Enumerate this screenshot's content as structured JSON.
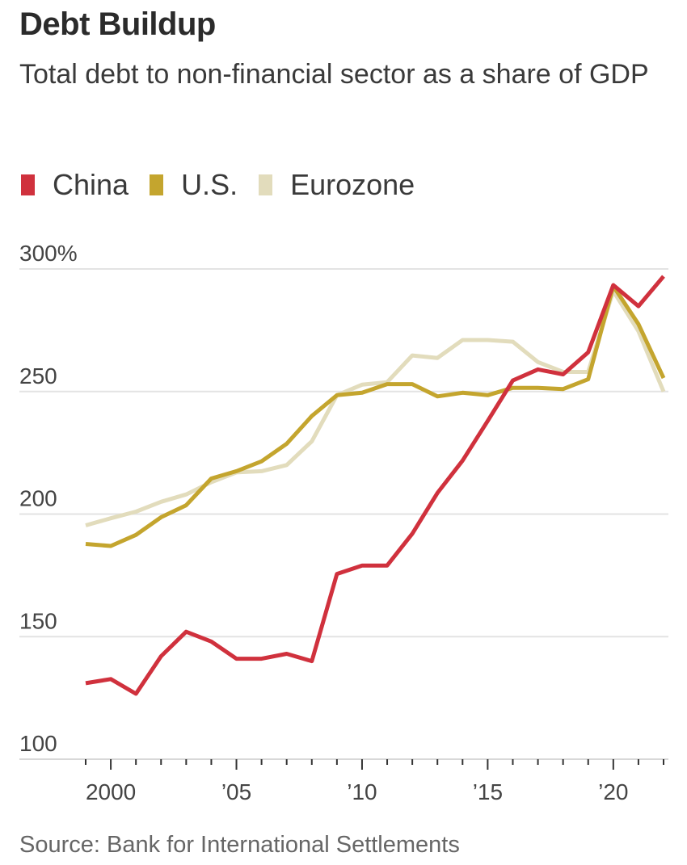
{
  "title": "Debt Buildup",
  "subtitle": "Total debt to non-financial sector as a share of GDP",
  "source": "Source: Bank for International Settlements",
  "legend": [
    {
      "name": "China",
      "color": "#d0313d"
    },
    {
      "name": "U.S.",
      "color": "#c4a52e"
    },
    {
      "name": "Eurozone",
      "color": "#e2dcbc"
    }
  ],
  "chart_data": {
    "type": "line",
    "title": "Debt Buildup",
    "subtitle": "Total debt to non-financial sector as a share of GDP",
    "xlabel": "",
    "ylabel": "",
    "x": [
      1999,
      2000,
      2001,
      2002,
      2003,
      2004,
      2005,
      2006,
      2007,
      2008,
      2009,
      2010,
      2011,
      2012,
      2013,
      2014,
      2015,
      2016,
      2017,
      2018,
      2019,
      2020,
      2021,
      2022
    ],
    "xlim": [
      1999,
      2022
    ],
    "ylim": [
      100,
      300
    ],
    "yticks": [
      100,
      150,
      200,
      250,
      300
    ],
    "ytick_labels": [
      "100",
      "150",
      "200",
      "250",
      "300%"
    ],
    "xticks": [
      2000,
      2005,
      2010,
      2015,
      2020
    ],
    "xtick_labels": [
      "2000",
      "’05",
      "’10",
      "’15",
      "’20"
    ],
    "grid": "horizontal",
    "legend_position": "top-left",
    "series": [
      {
        "name": "Eurozone",
        "color": "#e2dcbc",
        "values": [
          195.4,
          198.3,
          201,
          205,
          208,
          213,
          217,
          217.5,
          220,
          229.7,
          248.5,
          252.8,
          253.8,
          264.7,
          263.7,
          271,
          271,
          270.3,
          262,
          258,
          258,
          291,
          274.6,
          250
        ]
      },
      {
        "name": "U.S.",
        "color": "#c4a52e",
        "values": [
          187.8,
          187,
          191.5,
          198.7,
          203.6,
          214.5,
          217.5,
          221.5,
          228.7,
          240,
          248.5,
          249.5,
          253,
          253,
          248,
          249.5,
          248.5,
          251.5,
          251.5,
          251,
          255,
          293,
          277.5,
          255.5
        ]
      },
      {
        "name": "China",
        "color": "#d0313d",
        "values": [
          131,
          132.7,
          126.7,
          142,
          152,
          148,
          141,
          141,
          143,
          140,
          175.6,
          179,
          179,
          192,
          208.6,
          221.8,
          238,
          254.5,
          259,
          257,
          266,
          293.4,
          284.8,
          297
        ]
      }
    ],
    "source": "Source: Bank for International Settlements"
  }
}
